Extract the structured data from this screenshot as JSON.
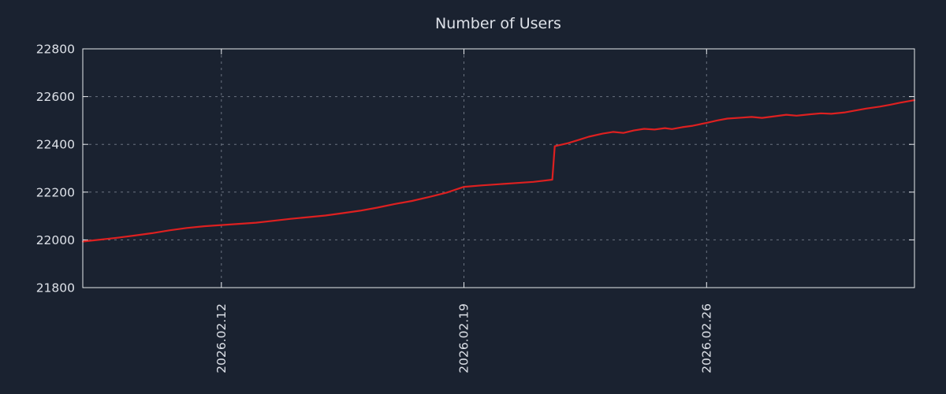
{
  "page": {
    "background": "#1a2230"
  },
  "chart_data": {
    "type": "line",
    "title": "Number of Users",
    "xlabel": "",
    "ylabel": "",
    "xlim": [
      0,
      24
    ],
    "ylim": [
      21800,
      22800
    ],
    "grid": true,
    "legend_position": "none",
    "y_ticks": [
      21800,
      22000,
      22200,
      22400,
      22600,
      22800
    ],
    "x_ticks": [
      {
        "pos": 4,
        "label": "2026.02.12"
      },
      {
        "pos": 11,
        "label": "2026.02.19"
      },
      {
        "pos": 18,
        "label": "2026.02.26"
      }
    ],
    "colors": {
      "background": "#1a2230",
      "axis": "#e6e9ed",
      "grid": "#aeb6c2",
      "text": "#dde1e8",
      "line": "#dd2020"
    },
    "series": [
      {
        "name": "Number of Users",
        "color": "#dd2020",
        "points": [
          [
            0,
            21993
          ],
          [
            0.5,
            22001
          ],
          [
            1,
            22009
          ],
          [
            1.5,
            22018
          ],
          [
            2,
            22028
          ],
          [
            2.5,
            22040
          ],
          [
            3,
            22050
          ],
          [
            3.5,
            22057
          ],
          [
            4,
            22062
          ],
          [
            4.5,
            22067
          ],
          [
            5,
            22072
          ],
          [
            5.5,
            22080
          ],
          [
            6,
            22088
          ],
          [
            6.5,
            22095
          ],
          [
            7,
            22102
          ],
          [
            7.5,
            22112
          ],
          [
            8,
            22122
          ],
          [
            8.5,
            22135
          ],
          [
            9,
            22150
          ],
          [
            9.5,
            22163
          ],
          [
            10,
            22180
          ],
          [
            10.5,
            22198
          ],
          [
            11,
            22222
          ],
          [
            11.5,
            22228
          ],
          [
            12,
            22233
          ],
          [
            12.5,
            22238
          ],
          [
            13,
            22243
          ],
          [
            13.3,
            22248
          ],
          [
            13.55,
            22252
          ],
          [
            13.62,
            22392
          ],
          [
            14,
            22405
          ],
          [
            14.3,
            22418
          ],
          [
            14.6,
            22432
          ],
          [
            15,
            22445
          ],
          [
            15.3,
            22452
          ],
          [
            15.6,
            22448
          ],
          [
            15.9,
            22458
          ],
          [
            16.2,
            22465
          ],
          [
            16.5,
            22462
          ],
          [
            16.8,
            22468
          ],
          [
            17,
            22464
          ],
          [
            17.3,
            22472
          ],
          [
            17.6,
            22478
          ],
          [
            18,
            22490
          ],
          [
            18.3,
            22500
          ],
          [
            18.6,
            22508
          ],
          [
            19,
            22512
          ],
          [
            19.3,
            22515
          ],
          [
            19.6,
            22511
          ],
          [
            20,
            22518
          ],
          [
            20.3,
            22524
          ],
          [
            20.6,
            22520
          ],
          [
            21,
            22526
          ],
          [
            21.3,
            22530
          ],
          [
            21.6,
            22528
          ],
          [
            22,
            22534
          ],
          [
            22.3,
            22542
          ],
          [
            22.6,
            22550
          ],
          [
            23,
            22558
          ],
          [
            23.3,
            22566
          ],
          [
            23.6,
            22575
          ],
          [
            24,
            22585
          ]
        ]
      }
    ]
  }
}
